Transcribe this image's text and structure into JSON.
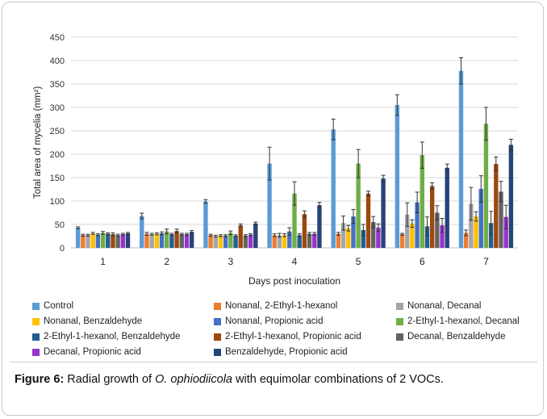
{
  "chart_data": {
    "type": "bar",
    "xlabel": "Days post inoculation",
    "ylabel": "Total area of mycelia (mm²)",
    "ylim": [
      0,
      450
    ],
    "yticks": [
      0,
      50,
      100,
      150,
      200,
      250,
      300,
      350,
      400,
      450
    ],
    "grid": true,
    "legend_position": "bottom",
    "categories": [
      "1",
      "2",
      "3",
      "4",
      "5",
      "6",
      "7"
    ],
    "series": [
      {
        "name": "Control",
        "color": "#5b9bd5",
        "values": [
          43,
          68,
          99,
          180,
          253,
          305,
          378
        ],
        "errors": [
          2,
          6,
          4,
          35,
          22,
          22,
          28
        ]
      },
      {
        "name": "Nonanal, 2-Ethyl-1-hexanol",
        "color": "#ed7d31",
        "values": [
          27,
          30,
          27,
          27,
          30,
          29,
          32
        ],
        "errors": [
          2,
          3,
          2,
          3,
          3,
          2,
          6
        ]
      },
      {
        "name": "Nonanal, Decanal",
        "color": "#a5a5a5",
        "values": [
          27,
          29,
          25,
          27,
          53,
          71,
          94
        ],
        "errors": [
          2,
          2,
          2,
          4,
          15,
          25,
          35
        ]
      },
      {
        "name": "Nonanal, Benzaldehyde",
        "color": "#ffc000",
        "values": [
          31,
          30,
          26,
          27,
          42,
          52,
          67
        ],
        "errors": [
          2,
          2,
          2,
          3,
          6,
          8,
          10
        ]
      },
      {
        "name": "Nonanal, Propionic acid",
        "color": "#4472c4",
        "values": [
          28,
          31,
          26,
          35,
          67,
          97,
          126
        ],
        "errors": [
          2,
          3,
          2,
          8,
          15,
          22,
          28
        ]
      },
      {
        "name": "2-Ethyl-1-hexanol, Decanal",
        "color": "#70ad47",
        "values": [
          32,
          35,
          32,
          116,
          180,
          198,
          265
        ],
        "errors": [
          3,
          5,
          4,
          25,
          30,
          28,
          35
        ]
      },
      {
        "name": "2-Ethyl-1-hexanol, Benzaldehyde",
        "color": "#255e91",
        "values": [
          30,
          29,
          26,
          27,
          38,
          46,
          53
        ],
        "errors": [
          2,
          2,
          2,
          3,
          12,
          20,
          25
        ]
      },
      {
        "name": "2-Ethyl-1-hexanol, Propionic acid",
        "color": "#9e480e",
        "values": [
          29,
          36,
          48,
          72,
          116,
          132,
          179
        ],
        "errors": [
          3,
          4,
          3,
          7,
          5,
          7,
          15
        ]
      },
      {
        "name": "Decanal, Benzaldehyde",
        "color": "#636363",
        "values": [
          27,
          29,
          26,
          30,
          55,
          75,
          120
        ],
        "errors": [
          2,
          2,
          2,
          3,
          12,
          15,
          22
        ]
      },
      {
        "name": "Decanal, Propionic acid",
        "color": "#9933cc",
        "values": [
          29,
          29,
          28,
          30,
          43,
          48,
          66
        ],
        "errors": [
          2,
          2,
          2,
          3,
          8,
          15,
          25
        ]
      },
      {
        "name": "Benzaldehyde, Propionic acid",
        "color": "#264478",
        "values": [
          31,
          34,
          52,
          91,
          148,
          171,
          220
        ],
        "errors": [
          2,
          3,
          3,
          6,
          7,
          8,
          12
        ]
      }
    ]
  },
  "caption": {
    "figure_label": "Figure 6:",
    "text_before": " Radial growth of ",
    "species": "O. ophiodiicola",
    "text_after": " with equimolar combinations of 2 VOCs."
  }
}
